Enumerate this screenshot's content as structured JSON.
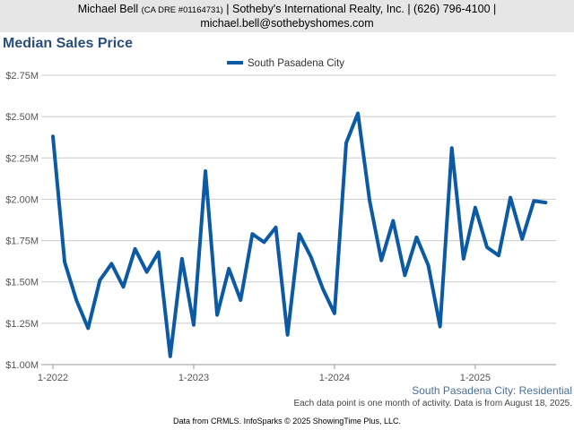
{
  "header": {
    "agent_name": "Michael Bell",
    "license": "(CA DRE #01164731)",
    "company": "| Sotheby's International Realty, Inc. | (626) 796-4100 |",
    "email": "michael.bell@sothebyshomes.com"
  },
  "region_label": "South Pasadena City: Residential",
  "note": "Each data point is one month of activity. Data is from August 18, 2025.",
  "footer": "Data from CRMLS. InfoSparks © 2025 ShowingTime Plus, LLC.",
  "colors": {
    "series": "#0b5aa3",
    "grid": "#cccccc",
    "header_bg": "#e6e6e6",
    "title": "#2a4e7a"
  },
  "chart_data": {
    "type": "line",
    "title": "Median Sales Price",
    "legend_position": "top-center",
    "grid": true,
    "ylim": [
      1000000,
      2750000
    ],
    "y_ticks": [
      {
        "value": 1000000,
        "label": "$1.00M"
      },
      {
        "value": 1250000,
        "label": "$1.25M"
      },
      {
        "value": 1500000,
        "label": "$1.50M"
      },
      {
        "value": 1750000,
        "label": "$1.75M"
      },
      {
        "value": 2000000,
        "label": "$2.00M"
      },
      {
        "value": 2250000,
        "label": "$2.25M"
      },
      {
        "value": 2500000,
        "label": "$2.50M"
      },
      {
        "value": 2750000,
        "label": "$2.75M"
      }
    ],
    "x_ticks": [
      {
        "value": "2022-01",
        "label": "1-2022"
      },
      {
        "value": "2023-01",
        "label": "1-2023"
      },
      {
        "value": "2024-01",
        "label": "1-2024"
      },
      {
        "value": "2025-01",
        "label": "1-2025"
      }
    ],
    "xlim": [
      "2022-01",
      "2025-07"
    ],
    "series": [
      {
        "name": "South Pasadena City",
        "x": [
          "2022-01",
          "2022-02",
          "2022-03",
          "2022-04",
          "2022-05",
          "2022-06",
          "2022-07",
          "2022-08",
          "2022-09",
          "2022-10",
          "2022-11",
          "2022-12",
          "2023-01",
          "2023-02",
          "2023-03",
          "2023-04",
          "2023-05",
          "2023-06",
          "2023-07",
          "2023-08",
          "2023-09",
          "2023-10",
          "2023-11",
          "2023-12",
          "2024-01",
          "2024-02",
          "2024-03",
          "2024-04",
          "2024-05",
          "2024-06",
          "2024-07",
          "2024-08",
          "2024-09",
          "2024-10",
          "2024-11",
          "2024-12",
          "2025-01",
          "2025-02",
          "2025-03",
          "2025-04",
          "2025-05",
          "2025-06",
          "2025-07"
        ],
        "values": [
          2380000,
          1620000,
          1390000,
          1220000,
          1510000,
          1610000,
          1470000,
          1700000,
          1560000,
          1680000,
          1050000,
          1640000,
          1240000,
          2170000,
          1300000,
          1580000,
          1390000,
          1790000,
          1740000,
          1830000,
          1180000,
          1790000,
          1650000,
          1460000,
          1310000,
          2340000,
          2520000,
          1990000,
          1630000,
          1870000,
          1540000,
          1770000,
          1600000,
          1230000,
          2310000,
          1640000,
          1950000,
          1710000,
          1660000,
          2010000,
          1760000,
          1990000,
          1980000
        ]
      }
    ]
  }
}
